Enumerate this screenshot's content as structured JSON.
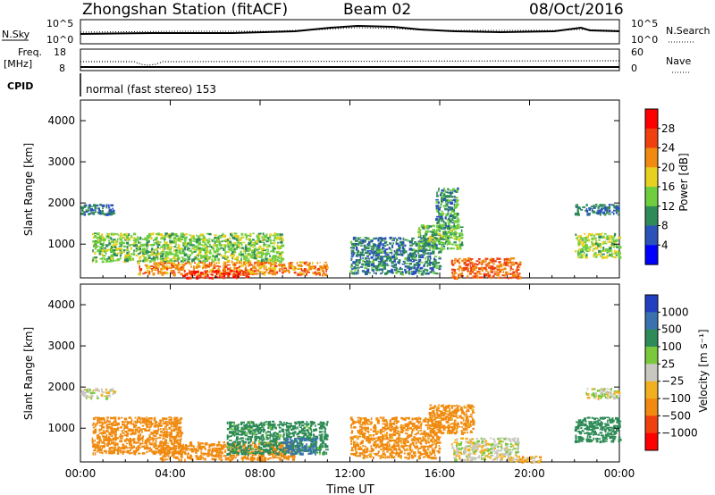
{
  "header": {
    "station": "Zhongshan Station (fitACF)",
    "beam": "Beam 02",
    "date": "08/Oct/2016"
  },
  "top_panels": {
    "nsky_label": "N.Sky",
    "nsearch_label": "N.Search",
    "nsky_top": "10^5",
    "nsky_bottom": "10^0",
    "freq_label": "Freq.",
    "freq_unit": "[MHz]",
    "freq_top": "18",
    "freq_bottom": "8",
    "nave_label": "Nave",
    "nave_top": "60",
    "nave_bottom": "0",
    "cpid_label": "CPID",
    "cpid_text": "normal (fast stereo) 153"
  },
  "colorbar_power": {
    "label": "Power [dB]",
    "ticks": [
      "4",
      "8",
      "12",
      "16",
      "20",
      "24",
      "28"
    ],
    "colors": [
      "#0000ff",
      "#2a52b8",
      "#2e8b57",
      "#6fce3f",
      "#e8d020",
      "#f08a10",
      "#f04010",
      "#ff0000"
    ]
  },
  "colorbar_velocity": {
    "label": "Velocity [m s⁻¹]",
    "ticks": [
      "1000",
      "500",
      "100",
      "25",
      "−25",
      "−100",
      "−500",
      "−1000"
    ],
    "colors": [
      "#2040c0",
      "#3a72b0",
      "#2e8b57",
      "#7ac83c",
      "#c8c8c0",
      "#f0b020",
      "#f08a10",
      "#f04010",
      "#ff0000"
    ]
  },
  "chart_data": [
    {
      "type": "heatmap",
      "panel": "power",
      "ylabel": "Slant Range [km]",
      "ylim": [
        180,
        4500
      ],
      "yticks": [
        1000,
        2000,
        3000,
        4000
      ],
      "xlim": [
        0,
        24
      ],
      "xticks": [
        0,
        4,
        8,
        12,
        16,
        20,
        24
      ],
      "xticklabels": [
        "00:00",
        "04:00",
        "08:00",
        "12:00",
        "16:00",
        "20:00",
        "00:00"
      ],
      "zlabel": "Power [dB]",
      "zlim": [
        0,
        32
      ],
      "blobs": [
        {
          "t0": 0.0,
          "t1": 1.5,
          "r0": 1750,
          "r1": 2000,
          "value": 8
        },
        {
          "t0": 0.5,
          "t1": 9.0,
          "r0": 600,
          "r1": 1300,
          "value": 14
        },
        {
          "t0": 2.5,
          "t1": 11.0,
          "r0": 280,
          "r1": 600,
          "value": 22
        },
        {
          "t0": 4.5,
          "t1": 7.5,
          "r0": 200,
          "r1": 400,
          "value": 28
        },
        {
          "t0": 12.0,
          "t1": 16.0,
          "r0": 300,
          "r1": 1200,
          "value": 9
        },
        {
          "t0": 15.0,
          "t1": 17.0,
          "r0": 900,
          "r1": 1500,
          "value": 13
        },
        {
          "t0": 15.8,
          "t1": 16.8,
          "r0": 1400,
          "r1": 2400,
          "value": 10
        },
        {
          "t0": 16.5,
          "t1": 19.6,
          "r0": 200,
          "r1": 700,
          "value": 24
        },
        {
          "t0": 22.0,
          "t1": 24.0,
          "r0": 700,
          "r1": 1300,
          "value": 15
        },
        {
          "t0": 22.0,
          "t1": 24.0,
          "r0": 1750,
          "r1": 2000,
          "value": 8
        }
      ]
    },
    {
      "type": "heatmap",
      "panel": "velocity",
      "ylabel": "Slant Range [km]",
      "xlabel": "Time UT",
      "ylim": [
        180,
        4500
      ],
      "yticks": [
        1000,
        2000,
        3000,
        4000
      ],
      "xlim": [
        0,
        24
      ],
      "xticks": [
        0,
        4,
        8,
        12,
        16,
        20,
        24
      ],
      "xticklabels": [
        "00:00",
        "04:00",
        "08:00",
        "12:00",
        "16:00",
        "20:00",
        "00:00"
      ],
      "zlabel": "Velocity [m s⁻¹]",
      "zlim": [
        -1000,
        1000
      ],
      "blobs": [
        {
          "t0": 0.0,
          "t1": 1.5,
          "r0": 1750,
          "r1": 2000,
          "value": 0
        },
        {
          "t0": 0.5,
          "t1": 4.5,
          "r0": 400,
          "r1": 1300,
          "value": -200
        },
        {
          "t0": 3.5,
          "t1": 9.5,
          "r0": 250,
          "r1": 700,
          "value": -200
        },
        {
          "t0": 6.5,
          "t1": 11.0,
          "r0": 400,
          "r1": 1200,
          "value": 150
        },
        {
          "t0": 9.0,
          "t1": 10.5,
          "r0": 400,
          "r1": 800,
          "value": 700
        },
        {
          "t0": 12.0,
          "t1": 16.0,
          "r0": 300,
          "r1": 1300,
          "value": -150
        },
        {
          "t0": 15.5,
          "t1": 17.5,
          "r0": 900,
          "r1": 1600,
          "value": -150
        },
        {
          "t0": 16.5,
          "t1": 19.5,
          "r0": 250,
          "r1": 800,
          "value": 0
        },
        {
          "t0": 19.0,
          "t1": 20.5,
          "r0": 200,
          "r1": 350,
          "value": -60
        },
        {
          "t0": 22.0,
          "t1": 24.0,
          "r0": 700,
          "r1": 1300,
          "value": 300
        },
        {
          "t0": 22.5,
          "t1": 24.0,
          "r0": 1750,
          "r1": 2000,
          "value": 0
        }
      ]
    }
  ]
}
